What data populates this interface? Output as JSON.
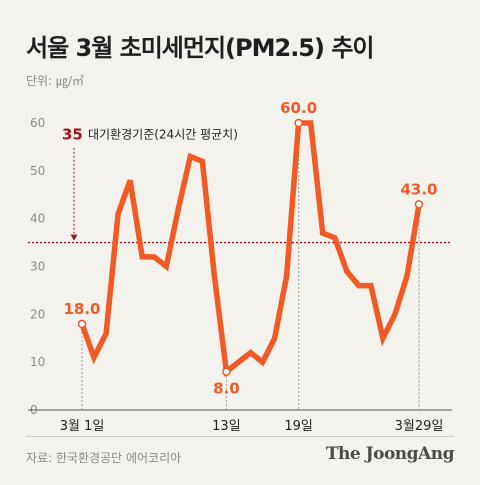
{
  "header": {
    "title": "서울 3월 초미세먼지(PM2.5) 추이",
    "unit": "단위: ㎍/㎥"
  },
  "footer": {
    "source": "자료: 한국환경공단 에어코리아",
    "brand": "The JoongAng"
  },
  "colors": {
    "line": "#f15a24",
    "threshold": "#a3171c",
    "text": "#1f1f1f",
    "muted": "#8a8a8a",
    "background": "#f4f2ed"
  },
  "chart_data": {
    "type": "line",
    "title": "서울 3월 초미세먼지(PM2.5) 추이",
    "xlabel": "",
    "ylabel": "",
    "ylim": [
      0,
      60
    ],
    "yticks": [
      0,
      10,
      20,
      30,
      40,
      50,
      60
    ],
    "grid": false,
    "x": [
      1,
      2,
      3,
      4,
      5,
      6,
      7,
      8,
      9,
      10,
      11,
      12,
      13,
      14,
      15,
      16,
      17,
      18,
      19,
      20,
      21,
      22,
      23,
      24,
      25,
      26,
      27,
      28,
      29
    ],
    "values": [
      18,
      11,
      16,
      41,
      48,
      32,
      32,
      30,
      42,
      53,
      52,
      28,
      8,
      10,
      12,
      10,
      15,
      28,
      60,
      60,
      37,
      36,
      29,
      26,
      26,
      15,
      20,
      28,
      43
    ],
    "xtick_labels": [
      {
        "day": 1,
        "label": "3월 1일"
      },
      {
        "day": 13,
        "label": "13일"
      },
      {
        "day": 19,
        "label": "19일"
      },
      {
        "day": 29,
        "label": "3월29일"
      }
    ],
    "data_labels": [
      {
        "day": 1,
        "text": "18.0"
      },
      {
        "day": 13,
        "text": "8.0"
      },
      {
        "day": 19,
        "text": "60.0"
      },
      {
        "day": 29,
        "text": "43.0"
      }
    ],
    "threshold": {
      "value": 35,
      "value_label": "35",
      "label": "대기환경기준(24시간 평균치)"
    }
  }
}
